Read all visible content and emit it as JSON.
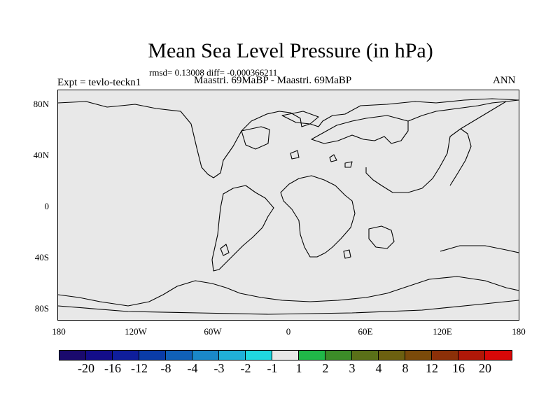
{
  "title": "Mean Sea Level Pressure (in hPa)",
  "stats": "rmsd= 0.13008 diff= -0.000366211",
  "expt_label": "Expt = tevlo-teckn1",
  "subtitle": "Maastri.  69MaBP - Maastri.  69MaBP",
  "season": "ANN",
  "y_ticks": [
    "80N",
    "40N",
    "0",
    "40S",
    "80S"
  ],
  "x_ticks": [
    "180",
    "120W",
    "60W",
    "0",
    "60E",
    "120E",
    "180"
  ],
  "colorbar": {
    "colors": [
      "#1a0a6e",
      "#130d8a",
      "#0f1e9c",
      "#0a3ca8",
      "#1060b8",
      "#1a88c8",
      "#20b0d8",
      "#20d8e0",
      "#e8e8e8",
      "#20b848",
      "#3c8c28",
      "#5a7018",
      "#6c6010",
      "#7a4a0a",
      "#8c3008",
      "#b01808",
      "#d80808"
    ],
    "labels": [
      "-20",
      "-16",
      "-12",
      "-8",
      "-4",
      "-3",
      "-2",
      "-1",
      "1",
      "2",
      "3",
      "4",
      "8",
      "12",
      "16",
      "20"
    ]
  }
}
